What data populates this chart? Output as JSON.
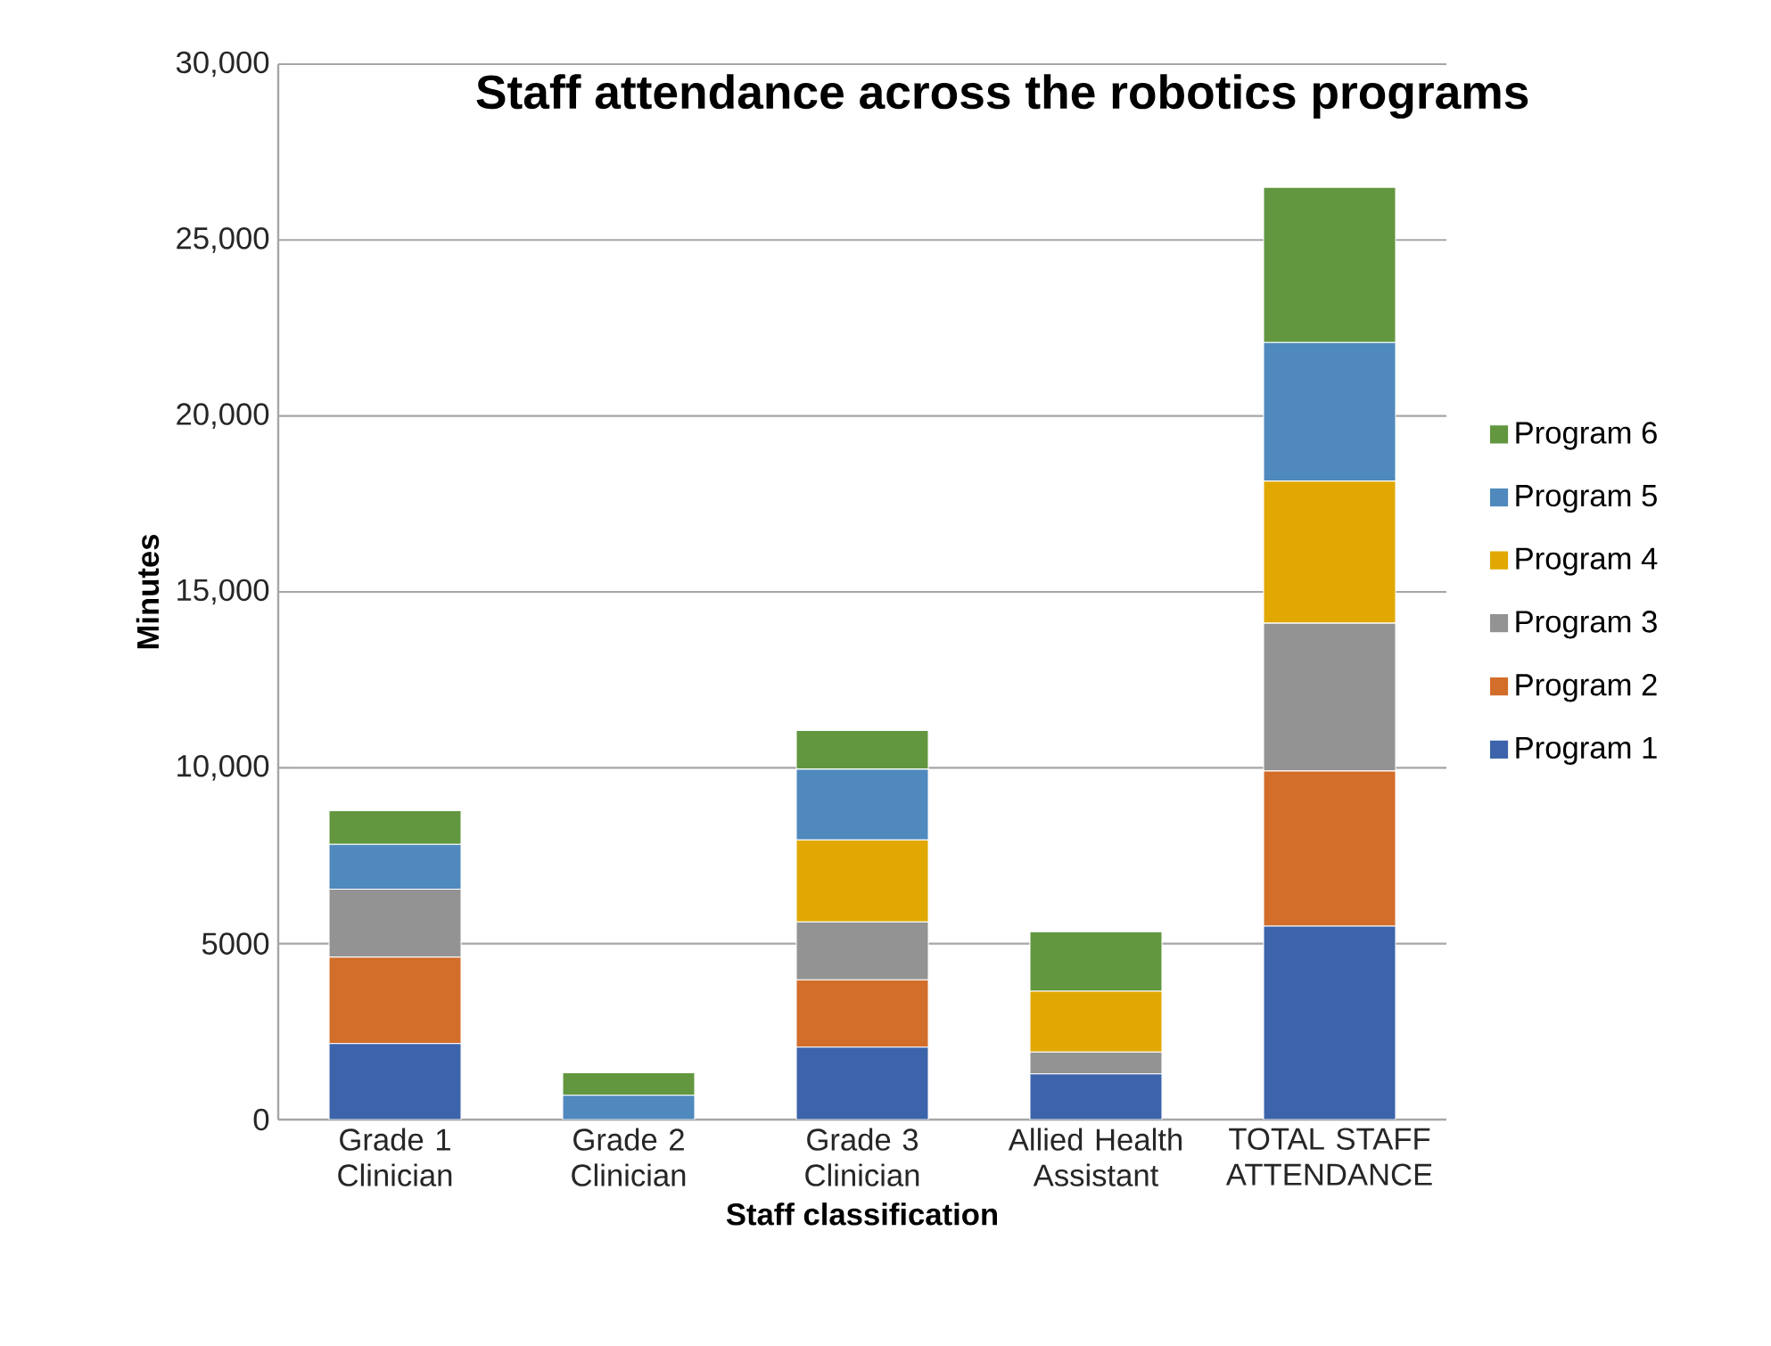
{
  "chart_data": {
    "type": "bar",
    "stacked": true,
    "title": "Staff attendance across the robotics programs",
    "xlabel": "Staff classification",
    "ylabel": "Minutes",
    "categories": [
      "Grade 1 Clinician",
      "Grade 2 Clinician",
      "Grade 3 Clinician",
      "Allied Health Assistant",
      "TOTAL STAFF ATTENDANCE"
    ],
    "series": [
      {
        "name": "Program 1",
        "color": "#3d64ab",
        "values": [
          2160,
          0,
          2060,
          1300,
          5500
        ]
      },
      {
        "name": "Program 2",
        "color": "#d26d2a",
        "values": [
          2460,
          0,
          1910,
          0,
          4410
        ]
      },
      {
        "name": "Program 3",
        "color": "#939393",
        "values": [
          1930,
          0,
          1650,
          620,
          4200
        ]
      },
      {
        "name": "Program 4",
        "color": "#e0a800",
        "values": [
          0,
          0,
          2330,
          1730,
          4040
        ]
      },
      {
        "name": "Program 5",
        "color": "#4f89bd",
        "values": [
          1270,
          690,
          2010,
          0,
          3940
        ]
      },
      {
        "name": "Program 6",
        "color": "#62973f",
        "values": [
          960,
          640,
          1100,
          1690,
          4410
        ]
      }
    ],
    "ylim": [
      0,
      30000
    ],
    "yticks": [
      0,
      5000,
      {
        "value": 10000,
        "label": "10,000"
      },
      {
        "value": 15000,
        "label": "15,000"
      },
      {
        "value": 20000,
        "label": "20,000"
      },
      {
        "value": 25000,
        "label": "25,000"
      },
      {
        "value": 30000,
        "label": "30,000"
      }
    ],
    "grid": "y",
    "legend": "right"
  }
}
